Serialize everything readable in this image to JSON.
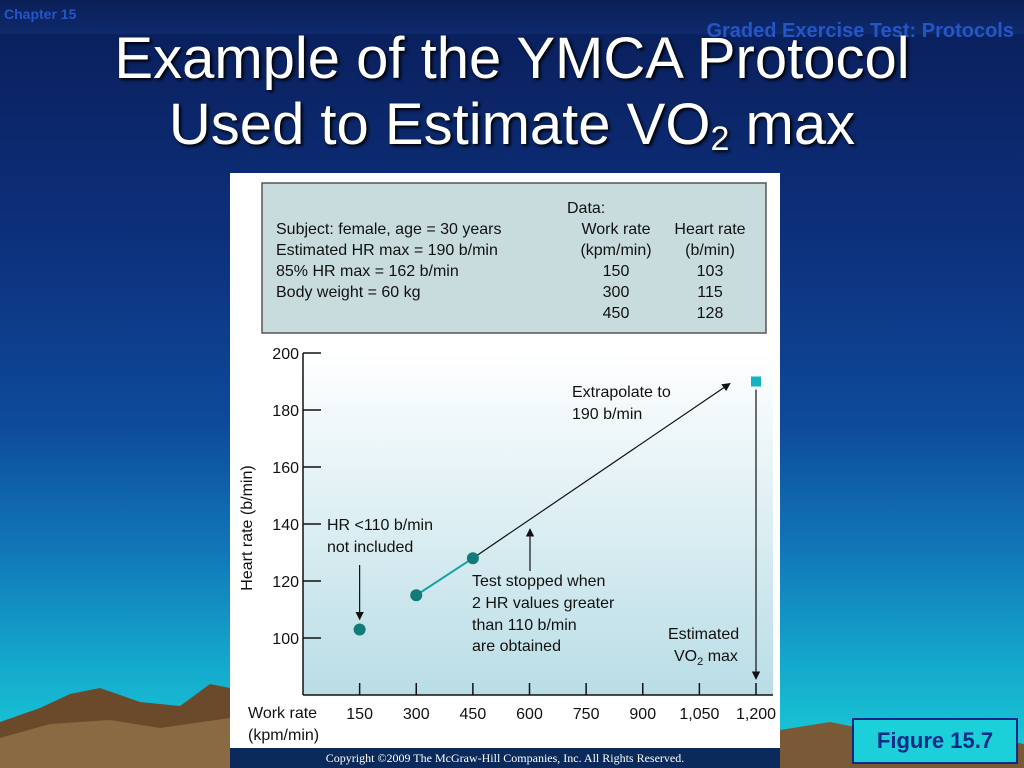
{
  "header": {
    "chapter": "Chapter 15",
    "section": "Graded Exercise Test: Protocols",
    "title_line1": "Example of the YMCA Protocol",
    "title_line2_main": "Used to Estimate VO",
    "title_line2_sub": "2",
    "title_line2_end": " max"
  },
  "databox": {
    "heading": "Data:",
    "subject_lines": [
      "Subject:  female, age = 30 years",
      "Estimated HR max = 190 b/min",
      "85% HR max = 162 b/min",
      "Body weight = 60 kg"
    ],
    "col1_header": [
      "Work rate",
      "(kpm/min)"
    ],
    "col2_header": [
      "Heart rate",
      "(b/min)"
    ],
    "rows": [
      [
        "150",
        "103"
      ],
      [
        "300",
        "115"
      ],
      [
        "450",
        "128"
      ]
    ]
  },
  "chart_data": {
    "type": "scatter",
    "x_categories": [
      "150",
      "300",
      "450",
      "600",
      "750",
      "900",
      "1,050",
      "1,200"
    ],
    "x_values": [
      150,
      300,
      450,
      600,
      750,
      900,
      1050,
      1200
    ],
    "y_ticks": [
      "100",
      "120",
      "140",
      "160",
      "180",
      "200"
    ],
    "ylim": [
      80,
      200
    ],
    "xlim": [
      0,
      1200
    ],
    "ylabel": "Heart rate (b/min)",
    "xlabel": [
      "Work rate",
      "(kpm/min)"
    ],
    "points": [
      {
        "x": 150,
        "y": 103
      },
      {
        "x": 300,
        "y": 115
      },
      {
        "x": 450,
        "y": 128
      }
    ],
    "extrapolated_point": {
      "x": 1200,
      "y": 190
    },
    "annotations": {
      "excluded": [
        "HR <110 b/min",
        "not included"
      ],
      "extrapolate": [
        "Extrapolate to",
        "190 b/min"
      ],
      "stopped": [
        "Test stopped when",
        "2 HR values greater",
        "than 110 b/min",
        "are obtained"
      ],
      "estimated": [
        "Estimated",
        "VO",
        "2",
        " max"
      ]
    },
    "colors": {
      "point": "#127a78",
      "extrap_point": "#13b4c0",
      "line": "#111111",
      "fit_line": "#16a3a8",
      "panel_top": "#ffffff",
      "panel_bottom": "#b9dde6",
      "databox": "#c8dcdd"
    }
  },
  "footer": {
    "figure_label": "Figure 15.7",
    "copyright": "Copyright ©2009 The McGraw-Hill Companies, Inc. All Rights Reserved."
  }
}
